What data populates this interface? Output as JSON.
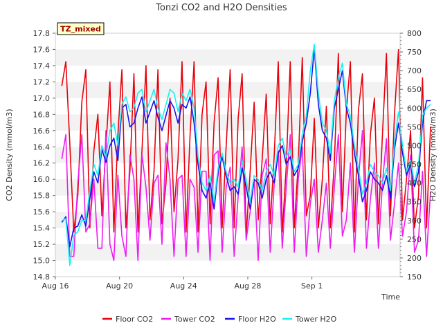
{
  "chart_data": {
    "type": "line",
    "title": "Tonzi CO2 and H2O Densities",
    "site_badge": "TZ_mixed",
    "xlabel": "Time",
    "ylabel_left": "CO2 Density (mmol/m3)",
    "ylabel_right": "H2O Density (mmol/m3)",
    "xlim_days": [
      0,
      21.5
    ],
    "x_ticks": [
      {
        "day": 0,
        "label": "Aug 16"
      },
      {
        "day": 4,
        "label": "Aug 20"
      },
      {
        "day": 8,
        "label": "Aug 24"
      },
      {
        "day": 12,
        "label": "Aug 28"
      },
      {
        "day": 16,
        "label": "Sep 1"
      }
    ],
    "ylim_left": [
      14.8,
      17.8
    ],
    "yticks_left": [
      "14.8",
      "15.0",
      "15.2",
      "15.4",
      "15.6",
      "15.8",
      "16.0",
      "16.2",
      "16.4",
      "16.6",
      "16.8",
      "17.0",
      "17.2",
      "17.4",
      "17.6",
      "17.8"
    ],
    "ylim_right": [
      150,
      800
    ],
    "yticks_right": [
      "150",
      "200",
      "250",
      "300",
      "350",
      "400",
      "450",
      "500",
      "550",
      "600",
      "650",
      "700",
      "750",
      "800"
    ],
    "grid": "horizontal bands",
    "legend_position": "bottom",
    "daily_step_days": 1,
    "series": [
      {
        "name": "Floor CO2",
        "axis": "left",
        "color": "#e8000b",
        "x_start_day": 0.4,
        "values": [
          17.15,
          17.45,
          16.45,
          15.35,
          15.8,
          16.95,
          17.35,
          15.4,
          16.35,
          16.8,
          15.55,
          16.4,
          17.2,
          15.35,
          16.55,
          17.35,
          15.4,
          16.1,
          17.3,
          15.35,
          16.35,
          17.4,
          15.5,
          16.1,
          17.35,
          15.45,
          15.95,
          17.0,
          15.6,
          16.25,
          17.45,
          15.35,
          16.55,
          17.45,
          15.35,
          16.8,
          17.2,
          15.45,
          16.7,
          17.25,
          15.4,
          16.4,
          17.35,
          15.4,
          16.75,
          17.3,
          15.3,
          16.1,
          16.95,
          15.5,
          16.25,
          17.05,
          15.45,
          16.3,
          17.45,
          15.35,
          16.15,
          17.45,
          15.4,
          16.2,
          17.5,
          15.55,
          15.8,
          16.75,
          15.4,
          16.0,
          16.9,
          15.4,
          16.2,
          17.55,
          15.6,
          16.85,
          17.45,
          15.35,
          16.85,
          17.3,
          15.5,
          16.55,
          17.0,
          15.45,
          16.55,
          17.55,
          15.55,
          16.8,
          17.6,
          15.5,
          16.0,
          16.6,
          15.4,
          15.8,
          17.25,
          15.4,
          16.65
        ]
      },
      {
        "name": "Tower CO2",
        "axis": "left",
        "color": "#ee1cf0",
        "x_start_day": 0.4,
        "values": [
          16.25,
          16.55,
          15.05,
          15.05,
          15.95,
          16.55,
          15.35,
          15.45,
          16.0,
          15.15,
          15.15,
          16.6,
          15.2,
          15.0,
          16.05,
          15.3,
          15.05,
          16.3,
          16.0,
          15.0,
          16.3,
          15.9,
          15.25,
          15.95,
          16.05,
          15.2,
          16.45,
          16.0,
          15.05,
          16.0,
          16.05,
          15.05,
          16.0,
          15.9,
          15.1,
          16.1,
          16.1,
          15.0,
          16.3,
          16.35,
          15.1,
          15.9,
          16.15,
          15.05,
          15.8,
          16.4,
          15.25,
          15.6,
          16.0,
          15.0,
          16.05,
          16.25,
          15.1,
          15.95,
          16.35,
          15.15,
          15.9,
          16.55,
          15.1,
          16.0,
          16.4,
          15.05,
          15.7,
          16.0,
          15.1,
          15.5,
          15.95,
          15.15,
          15.9,
          16.55,
          15.3,
          15.5,
          16.2,
          15.1,
          16.0,
          16.6,
          15.15,
          15.75,
          16.2,
          15.15,
          15.95,
          16.5,
          15.25,
          15.7,
          16.2,
          15.3,
          15.6,
          16.3,
          15.1,
          15.25,
          16.1,
          15.05,
          15.85
        ]
      },
      {
        "name": "Floor H2O",
        "axis": "right",
        "color": "#1a10ef",
        "x_start_day": 0.4,
        "values": [
          295,
          310,
          230,
          280,
          285,
          315,
          285,
          360,
          430,
          400,
          490,
          455,
          500,
          520,
          460,
          600,
          610,
          550,
          560,
          600,
          630,
          560,
          590,
          620,
          575,
          540,
          580,
          620,
          600,
          560,
          610,
          600,
          630,
          560,
          450,
          380,
          360,
          400,
          330,
          430,
          470,
          420,
          380,
          390,
          370,
          440,
          390,
          330,
          410,
          400,
          360,
          410,
          430,
          400,
          480,
          500,
          450,
          470,
          420,
          440,
          510,
          560,
          640,
          760,
          610,
          540,
          520,
          460,
          600,
          650,
          700,
          600,
          560,
          480,
          420,
          350,
          380,
          430,
          410,
          400,
          380,
          420,
          360,
          490,
          560,
          480,
          420,
          450,
          390,
          430,
          560,
          620,
          620
        ]
      },
      {
        "name": "Tower H2O",
        "axis": "right",
        "color": "#18f0f0",
        "x_start_day": 0.4,
        "values": [
          300,
          305,
          180,
          260,
          270,
          300,
          300,
          380,
          450,
          420,
          500,
          470,
          540,
          560,
          500,
          610,
          630,
          590,
          600,
          640,
          650,
          590,
          620,
          650,
          600,
          570,
          610,
          650,
          640,
          590,
          640,
          620,
          650,
          600,
          470,
          400,
          380,
          420,
          350,
          440,
          480,
          430,
          400,
          410,
          390,
          460,
          410,
          350,
          420,
          410,
          380,
          430,
          450,
          420,
          500,
          520,
          470,
          490,
          430,
          450,
          530,
          580,
          700,
          770,
          640,
          560,
          540,
          480,
          620,
          680,
          720,
          610,
          580,
          500,
          440,
          370,
          400,
          450,
          430,
          420,
          400,
          440,
          380,
          510,
          590,
          500,
          430,
          460,
          400,
          450,
          580,
          600,
          610
        ]
      }
    ]
  }
}
